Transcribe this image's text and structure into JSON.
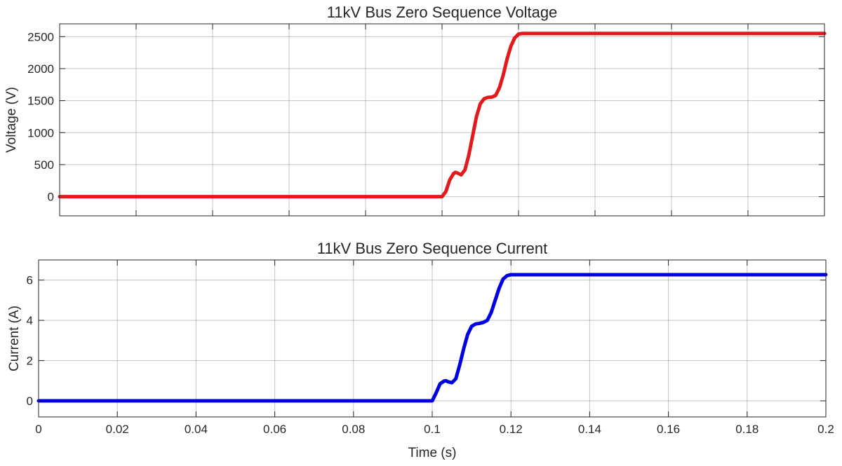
{
  "chart_data": [
    {
      "type": "line",
      "title": "11kV Bus Zero Sequence Voltage",
      "xlabel": "",
      "ylabel": "Voltage (V)",
      "xlim": [
        0,
        0.2
      ],
      "ylim": [
        -300,
        2700
      ],
      "xticks": [
        0,
        0.02,
        0.04,
        0.06,
        0.08,
        0.1,
        0.12,
        0.14,
        0.16,
        0.18,
        0.2
      ],
      "xtick_labels": [],
      "yticks": [
        0,
        500,
        1000,
        1500,
        2000,
        2500
      ],
      "ytick_labels": [
        "0",
        "500",
        "1000",
        "1500",
        "2000",
        "2500"
      ],
      "grid": true,
      "series": [
        {
          "color": "#e31a1c",
          "x": [
            0,
            0.1,
            0.101,
            0.102,
            0.103,
            0.1035,
            0.104,
            0.105,
            0.106,
            0.107,
            0.108,
            0.109,
            0.11,
            0.111,
            0.112,
            0.113,
            0.114,
            0.115,
            0.116,
            0.117,
            0.118,
            0.119,
            0.12,
            0.121,
            0.2
          ],
          "y": [
            0,
            0,
            80,
            260,
            360,
            380,
            370,
            340,
            420,
            650,
            950,
            1250,
            1450,
            1530,
            1550,
            1555,
            1580,
            1700,
            1900,
            2150,
            2350,
            2480,
            2540,
            2550,
            2550
          ]
        }
      ]
    },
    {
      "type": "line",
      "title": "11kV Bus Zero Sequence Current",
      "xlabel": "Time (s)",
      "ylabel": "Current (A)",
      "xlim": [
        0,
        0.2
      ],
      "ylim": [
        -0.8,
        7
      ],
      "xticks": [
        0,
        0.02,
        0.04,
        0.06,
        0.08,
        0.1,
        0.12,
        0.14,
        0.16,
        0.18,
        0.2
      ],
      "xtick_labels": [
        "0",
        "0.02",
        "0.04",
        "0.06",
        "0.08",
        "0.1",
        "0.12",
        "0.14",
        "0.16",
        "0.18",
        "0.2"
      ],
      "yticks": [
        0,
        2,
        4,
        6
      ],
      "ytick_labels": [
        "0",
        "2",
        "4",
        "6"
      ],
      "grid": true,
      "series": [
        {
          "color": "#0000e0",
          "x": [
            0,
            0.1,
            0.101,
            0.102,
            0.103,
            0.1035,
            0.104,
            0.105,
            0.106,
            0.107,
            0.108,
            0.109,
            0.11,
            0.111,
            0.112,
            0.113,
            0.114,
            0.115,
            0.116,
            0.117,
            0.118,
            0.119,
            0.12,
            0.2
          ],
          "y": [
            0,
            0,
            0.4,
            0.85,
            0.98,
            1.0,
            0.95,
            0.9,
            1.1,
            1.8,
            2.6,
            3.3,
            3.7,
            3.82,
            3.85,
            3.9,
            4.0,
            4.4,
            5.0,
            5.6,
            6.05,
            6.22,
            6.27,
            6.27
          ]
        }
      ]
    }
  ]
}
